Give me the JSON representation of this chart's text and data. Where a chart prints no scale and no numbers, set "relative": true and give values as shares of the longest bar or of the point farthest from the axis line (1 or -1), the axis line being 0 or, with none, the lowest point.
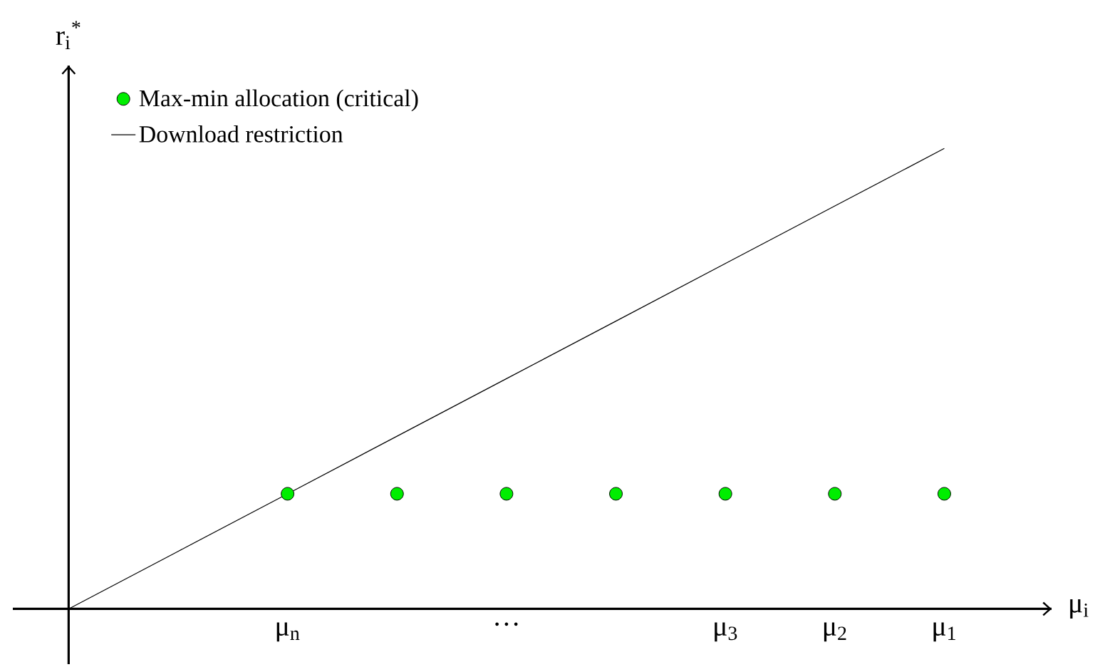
{
  "chart_data": {
    "type": "scatter",
    "relative": true,
    "xlabel": "μ$_{i}$",
    "ylabel": "r$_{i}$$^{*}$",
    "categories": [
      null,
      null,
      "μ$_{n}$",
      null,
      "···",
      null,
      "μ$_{3}$",
      "μ$_{2}$",
      "μ$_{1}$"
    ],
    "series": [
      {
        "name": "Max-min allocation (critical)",
        "color": "#00ee00",
        "values": [
          null,
          null,
          0.25,
          0.25,
          0.25,
          0.25,
          0.25,
          0.25,
          0.25
        ]
      },
      {
        "name": "Download restriction",
        "type": "line",
        "marker": "none",
        "color": "#000000",
        "values": [
          0,
          0.125,
          0.25,
          0.375,
          0.5,
          0.625,
          0.75,
          0.875,
          1
        ]
      }
    ],
    "legend": "top left",
    "marker": "circle"
  }
}
